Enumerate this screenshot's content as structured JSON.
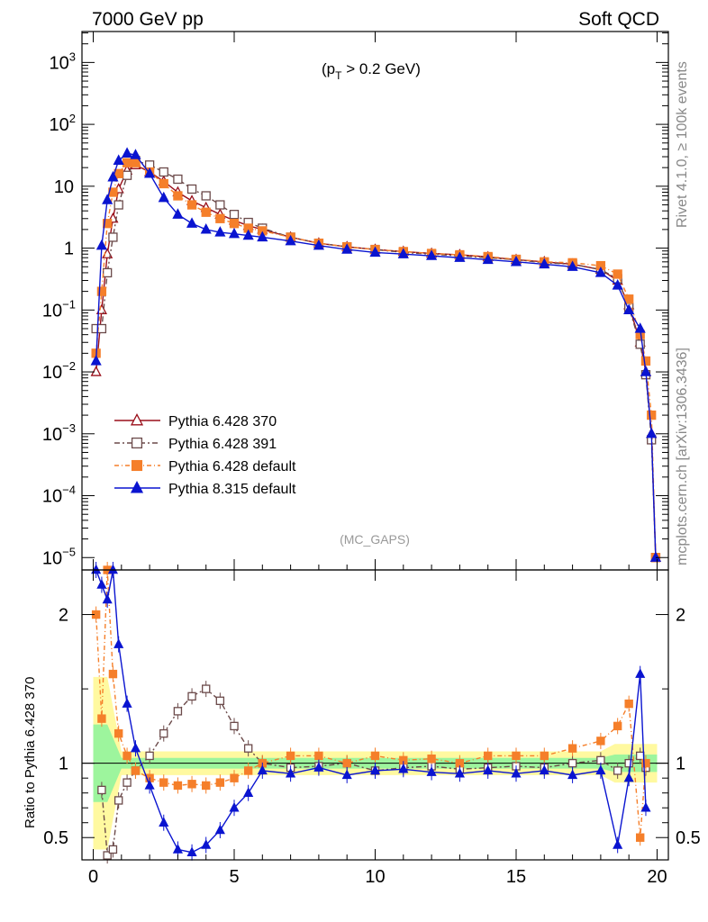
{
  "chart_data": {
    "type": "line",
    "header_left": "7000 GeV pp",
    "header_right": "Soft QCD",
    "annotation": "(p_T > 0.2 GeV)",
    "annotation_main": "(p",
    "annotation_sub": "T",
    "annotation_tail": " > 0.2 GeV)",
    "analysis_tag": "(MC_GAPS)",
    "side_label_top": "Rivet 4.1.0, ≥ 100k events",
    "side_label_bottom": "mcplots.cern.ch [arXiv:1306.3436]",
    "ratio_ylabel": "Ratio to Pythia 6.428 370",
    "xlim": [
      -0.4,
      20.4
    ],
    "main_ylim_log": [
      -5.2,
      3.5
    ],
    "ratio_ylim": [
      0.35,
      2.3
    ],
    "x_ticks": [
      "0",
      "5",
      "10",
      "15",
      "20"
    ],
    "main_y_ticks": [
      {
        "base": "10",
        "exp": "3"
      },
      {
        "base": "10",
        "exp": "2"
      },
      {
        "base": "10",
        "exp": ""
      },
      {
        "base": "1",
        "exp": ""
      },
      {
        "base": "10",
        "exp": "−1"
      },
      {
        "base": "10",
        "exp": "−2"
      },
      {
        "base": "10",
        "exp": "−3"
      },
      {
        "base": "10",
        "exp": "−4"
      },
      {
        "base": "10",
        "exp": "−5"
      }
    ],
    "ratio_y_ticks": [
      "2",
      "1",
      "0.5"
    ],
    "series": [
      {
        "name": "Pythia 6.428 370",
        "color": "#9a0f1a",
        "marker": "triangle-open",
        "dash": "",
        "x": [
          0.1,
          0.3,
          0.5,
          0.7,
          0.9,
          1.2,
          1.5,
          2.0,
          2.5,
          3.0,
          3.5,
          4.0,
          4.5,
          5.0,
          5.5,
          6.0,
          7.0,
          8.0,
          9.0,
          10.0,
          11.0,
          12.0,
          13.0,
          14.0,
          15.0,
          16.0,
          17.0,
          18.0,
          18.6,
          19.0,
          19.4,
          19.6,
          19.8,
          19.95
        ],
        "y": [
          0.01,
          0.1,
          0.8,
          3,
          9,
          18,
          22,
          17,
          12,
          8,
          5.8,
          4.5,
          3.5,
          2.8,
          2.3,
          2,
          1.5,
          1.2,
          1.05,
          0.95,
          0.88,
          0.82,
          0.78,
          0.72,
          0.65,
          0.6,
          0.55,
          0.45,
          0.3,
          0.12,
          0.03,
          0.01,
          0.001,
          1e-05
        ]
      },
      {
        "name": "Pythia 6.428 391",
        "color": "#6b4a4a",
        "marker": "square-open",
        "dash": "6 3 2 3",
        "x": [
          0.1,
          0.3,
          0.5,
          0.7,
          0.9,
          1.2,
          1.5,
          2.0,
          2.5,
          3.0,
          3.5,
          4.0,
          4.5,
          5.0,
          5.5,
          6.0,
          7.0,
          8.0,
          9.0,
          10.0,
          11.0,
          12.0,
          13.0,
          14.0,
          15.0,
          16.0,
          17.0,
          18.0,
          18.6,
          19.0,
          19.4,
          19.6,
          19.8,
          19.95
        ],
        "y": [
          0.05,
          0.05,
          0.4,
          1.5,
          5,
          15,
          26,
          22,
          17,
          13,
          9,
          7,
          5,
          3.5,
          2.6,
          2.1,
          1.5,
          1.2,
          1.05,
          0.95,
          0.85,
          0.8,
          0.75,
          0.7,
          0.65,
          0.58,
          0.55,
          0.45,
          0.32,
          0.11,
          0.028,
          0.009,
          0.0008,
          1e-05
        ]
      },
      {
        "name": "Pythia 6.428 default",
        "color": "#f57f2a",
        "marker": "square-filled",
        "dash": "5 3 1 3",
        "x": [
          0.1,
          0.3,
          0.5,
          0.7,
          0.9,
          1.2,
          1.5,
          2.0,
          2.5,
          3.0,
          3.5,
          4.0,
          4.5,
          5.0,
          5.5,
          6.0,
          7.0,
          8.0,
          9.0,
          10.0,
          11.0,
          12.0,
          13.0,
          14.0,
          15.0,
          16.0,
          17.0,
          18.0,
          18.6,
          19.0,
          19.4,
          19.6,
          19.8,
          19.95
        ],
        "y": [
          0.02,
          0.2,
          2.5,
          8,
          16,
          24,
          24,
          17,
          11,
          7,
          5,
          3.8,
          3,
          2.5,
          2.1,
          1.9,
          1.5,
          1.2,
          1.05,
          0.95,
          0.88,
          0.82,
          0.78,
          0.73,
          0.66,
          0.6,
          0.58,
          0.52,
          0.38,
          0.15,
          0.04,
          0.015,
          0.002,
          1e-05
        ]
      },
      {
        "name": "Pythia 8.315 default",
        "color": "#0a14d0",
        "marker": "triangle-filled",
        "dash": "",
        "x": [
          0.1,
          0.3,
          0.5,
          0.7,
          0.9,
          1.2,
          1.5,
          2.0,
          2.5,
          3.0,
          3.5,
          4.0,
          4.5,
          5.0,
          5.5,
          6.0,
          7.0,
          8.0,
          9.0,
          10.0,
          11.0,
          12.0,
          13.0,
          14.0,
          15.0,
          16.0,
          17.0,
          18.0,
          18.6,
          19.0,
          19.4,
          19.6,
          19.8,
          19.95
        ],
        "y": [
          0.015,
          1.1,
          6,
          14,
          26,
          34,
          32,
          16,
          6.5,
          3.5,
          2.5,
          2,
          1.8,
          1.7,
          1.6,
          1.5,
          1.3,
          1.1,
          0.95,
          0.85,
          0.8,
          0.75,
          0.7,
          0.65,
          0.6,
          0.55,
          0.5,
          0.4,
          0.25,
          0.1,
          0.05,
          0.01,
          0.001,
          1e-05
        ]
      }
    ],
    "ratio_series": [
      {
        "name": "Pythia 6.428 391",
        "x": [
          0.3,
          0.5,
          0.7,
          0.9,
          1.2,
          1.5,
          2.0,
          2.5,
          3.0,
          3.5,
          4.0,
          4.5,
          5.0,
          5.5,
          6.0,
          7.0,
          8.0,
          9.0,
          10.0,
          11.0,
          12.0,
          13.0,
          14.0,
          15.0,
          16.0,
          17.0,
          18.0,
          18.6,
          19.0,
          19.4,
          19.6
        ],
        "y": [
          0.82,
          0.38,
          0.42,
          0.75,
          0.87,
          0.95,
          1.05,
          1.2,
          1.35,
          1.45,
          1.5,
          1.42,
          1.25,
          1.1,
          1.0,
          0.97,
          0.98,
          1.0,
          0.95,
          0.97,
          0.98,
          0.96,
          0.97,
          0.98,
          0.97,
          1.0,
          1.02,
          0.95,
          1.0,
          1.05,
          0.97
        ]
      },
      {
        "name": "Pythia 6.428 default",
        "x": [
          0.1,
          0.3,
          0.5,
          0.7,
          0.9,
          1.2,
          1.5,
          2.0,
          2.5,
          3.0,
          3.5,
          4.0,
          4.5,
          5.0,
          5.5,
          6.0,
          7.0,
          8.0,
          9.0,
          10.0,
          11.0,
          12.0,
          13.0,
          14.0,
          15.0,
          16.0,
          17.0,
          18.0,
          18.6,
          19.0,
          19.4,
          19.6
        ],
        "y": [
          2.0,
          1.3,
          2.3,
          1.6,
          1.2,
          1.05,
          0.95,
          0.9,
          0.87,
          0.85,
          0.86,
          0.85,
          0.87,
          0.9,
          0.95,
          1.0,
          1.05,
          1.05,
          1.0,
          1.05,
          1.02,
          1.03,
          1.0,
          1.05,
          1.05,
          1.05,
          1.1,
          1.15,
          1.25,
          1.4,
          0.5,
          1.0
        ]
      },
      {
        "name": "Pythia 8.315 default",
        "x": [
          0.1,
          0.3,
          0.5,
          0.7,
          0.9,
          1.2,
          1.5,
          2.0,
          2.5,
          3.0,
          3.5,
          4.0,
          4.5,
          5.0,
          5.5,
          6.0,
          7.0,
          8.0,
          9.0,
          10.0,
          11.0,
          12.0,
          13.0,
          14.0,
          15.0,
          16.0,
          17.0,
          18.0,
          18.6,
          19.0,
          19.4,
          19.6
        ],
        "y": [
          2.3,
          2.2,
          2.1,
          2.3,
          1.8,
          1.4,
          1.1,
          0.85,
          0.6,
          0.42,
          0.4,
          0.45,
          0.55,
          0.7,
          0.8,
          0.95,
          0.93,
          0.97,
          0.92,
          0.95,
          0.96,
          0.94,
          0.93,
          0.95,
          0.93,
          0.95,
          0.92,
          0.95,
          0.45,
          0.9,
          1.6,
          0.7
        ]
      }
    ]
  }
}
